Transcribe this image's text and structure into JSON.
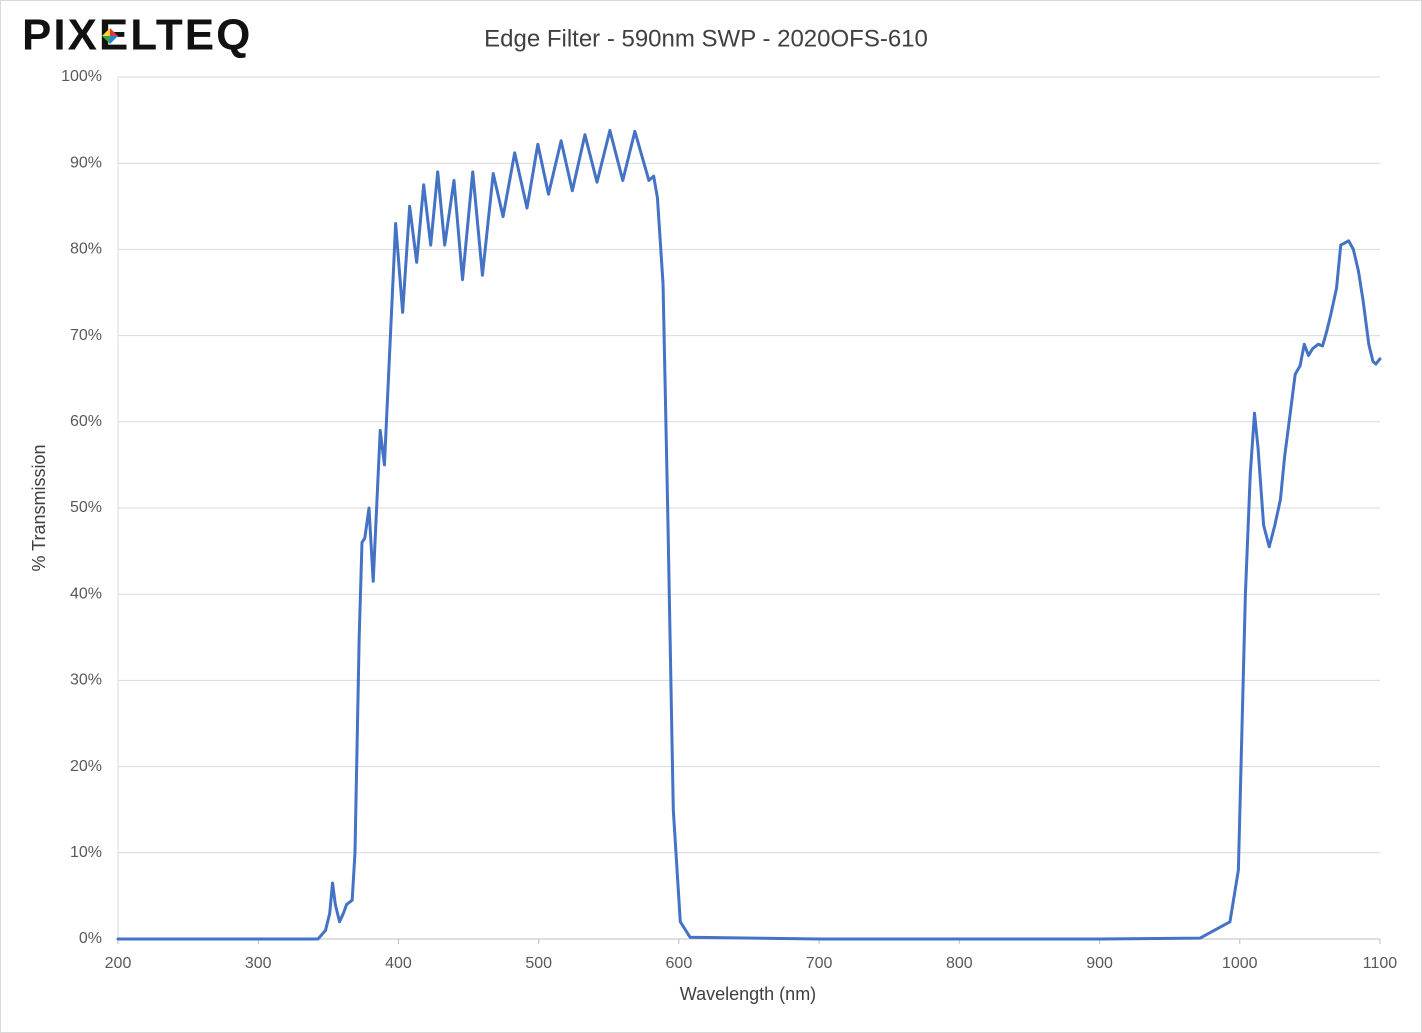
{
  "logo": "PIXELTEQ",
  "chart_data": {
    "type": "line",
    "title": "Edge Filter - 590nm SWP - 2020OFS-610",
    "x_label": "Wavelength (nm)",
    "y_label": "% Transmission",
    "xlim": [
      200,
      1100
    ],
    "xticks": [
      200,
      300,
      400,
      500,
      600,
      700,
      800,
      900,
      1000,
      1100
    ],
    "ylim": [
      0,
      100
    ],
    "yticks": [
      {
        "value": 0,
        "label": "0%"
      },
      {
        "value": 10,
        "label": "10%"
      },
      {
        "value": 20,
        "label": "20%"
      },
      {
        "value": 30,
        "label": "30%"
      },
      {
        "value": 40,
        "label": "40%"
      },
      {
        "value": 50,
        "label": "50%"
      },
      {
        "value": 60,
        "label": "60%"
      },
      {
        "value": 70,
        "label": "70%"
      },
      {
        "value": 80,
        "label": "80%"
      },
      {
        "value": 90,
        "label": "90%"
      },
      {
        "value": 100,
        "label": "100%"
      }
    ],
    "grid": true,
    "x": [
      200,
      300,
      342.6,
      348,
      351,
      353,
      355,
      358,
      360.8,
      363,
      367,
      369,
      372,
      374,
      376,
      379,
      382,
      387,
      390,
      398,
      403,
      408,
      413,
      418,
      423,
      428,
      433,
      439.6,
      445.7,
      453,
      459.9,
      467.6,
      474.6,
      482.9,
      491.7,
      499.4,
      507,
      516,
      524,
      533,
      541.6,
      550.8,
      560,
      568.6,
      578.6,
      582,
      584.7,
      588.7,
      592,
      596,
      601,
      608,
      700,
      800,
      900,
      971.6,
      993,
      999,
      1004,
      1007.5,
      1010.5,
      1013,
      1017,
      1021,
      1025,
      1029,
      1032,
      1036,
      1039.5,
      1043,
      1046,
      1049,
      1052,
      1056,
      1059,
      1062,
      1065,
      1069,
      1072,
      1075.5,
      1077.6,
      1081,
      1084.6,
      1088,
      1092,
      1095,
      1097,
      1100
    ],
    "series": [
      {
        "color": "#4472c4",
        "values": [
          0,
          0,
          0,
          1,
          3,
          6.5,
          4,
          2,
          3,
          4,
          4.5,
          10,
          35,
          46,
          46.5,
          50,
          41.5,
          59,
          55,
          83,
          72.7,
          85,
          78.5,
          87.5,
          80.5,
          89,
          80.5,
          88,
          76.5,
          89,
          77,
          88.8,
          83.8,
          91.2,
          84.8,
          92.2,
          86.4,
          92.6,
          86.8,
          93.3,
          87.8,
          93.8,
          88,
          93.7,
          88,
          88.5,
          86,
          76,
          50,
          15,
          2,
          0.2,
          0,
          0,
          0,
          0.1,
          2,
          8,
          40,
          54,
          61,
          57,
          48,
          45.5,
          48,
          51,
          56,
          61,
          65.5,
          66.5,
          69,
          67.7,
          68.5,
          69,
          68.8,
          70.5,
          72.5,
          75.5,
          80.5,
          80.8,
          81,
          80,
          77.5,
          74,
          69,
          67,
          66.7,
          67.3
        ]
      }
    ]
  }
}
